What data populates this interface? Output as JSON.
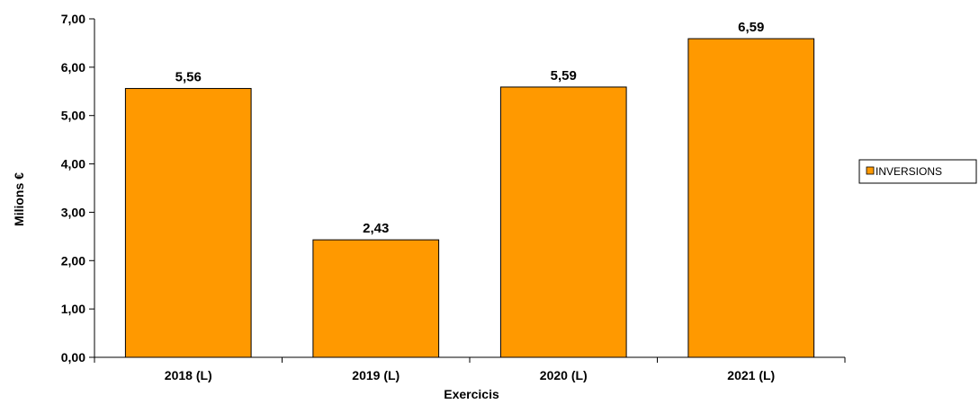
{
  "chart_data": {
    "type": "bar",
    "title": "",
    "xlabel": "Exercicis",
    "ylabel": "Milions €",
    "categories": [
      "2018 (L)",
      "2019 (L)",
      "2020 (L)",
      "2021 (L)"
    ],
    "series": [
      {
        "name": "INVERSIONS",
        "values": [
          5.56,
          2.43,
          5.59,
          6.59
        ],
        "value_labels": [
          "5,56",
          "2,43",
          "5,59",
          "6,59"
        ],
        "color": "#FF9900"
      }
    ],
    "ylim": [
      0,
      7
    ],
    "yticks": [
      0,
      1,
      2,
      3,
      4,
      5,
      6,
      7
    ],
    "ytick_labels": [
      "0,00",
      "1,00",
      "2,00",
      "3,00",
      "4,00",
      "5,00",
      "6,00",
      "7,00"
    ],
    "grid": false,
    "legend": "right"
  }
}
